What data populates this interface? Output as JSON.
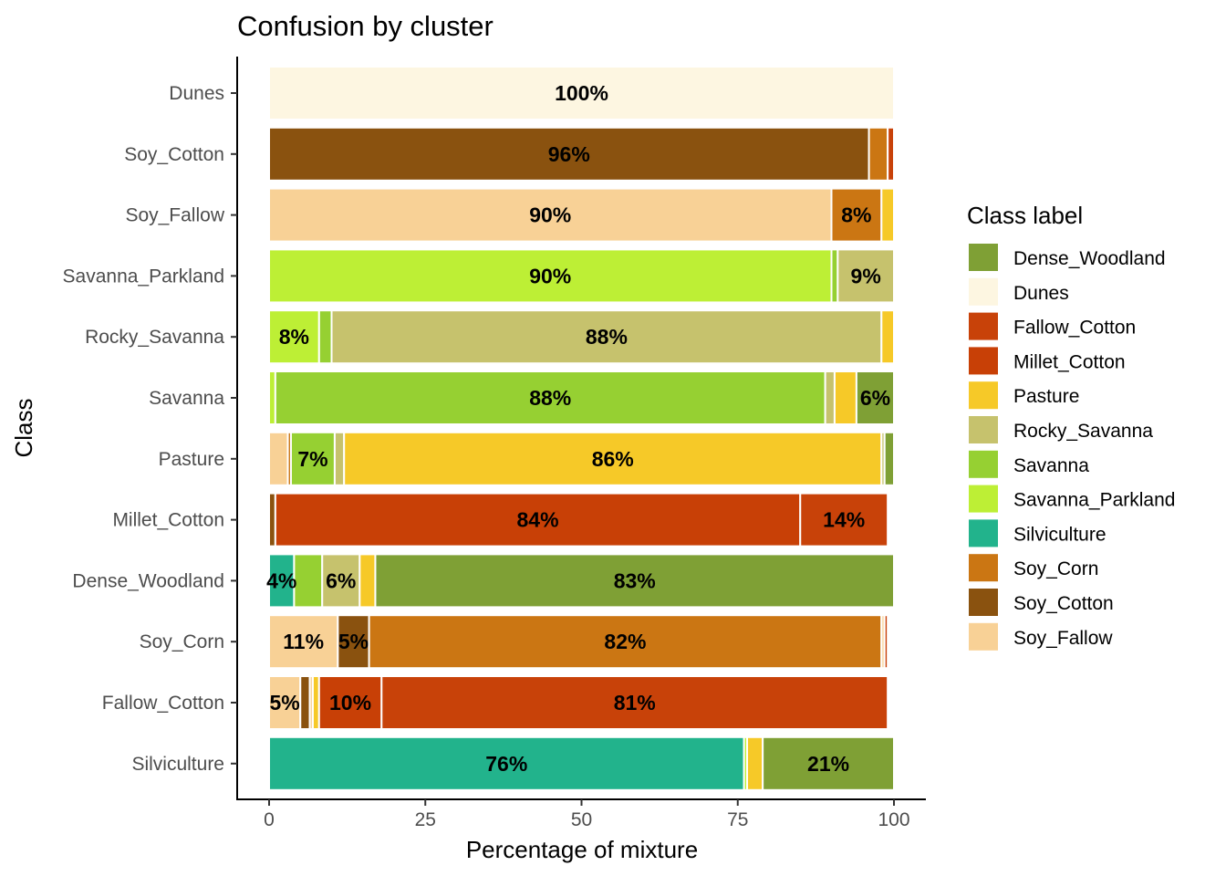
{
  "chart_data": {
    "type": "bar",
    "orientation": "horizontal",
    "stacked": true,
    "title": "Confusion by cluster",
    "xlabel": "Percentage of mixture",
    "ylabel": "Class",
    "xlim": [
      0,
      100
    ],
    "xticks": [
      "0",
      "25",
      "50",
      "75",
      "100"
    ],
    "grid": false,
    "legend": {
      "title": "Class label",
      "position": "right",
      "items": [
        {
          "name": "Dense_Woodland",
          "color": "#7fa035"
        },
        {
          "name": "Dunes",
          "color": "#fdf6e1"
        },
        {
          "name": "Fallow_Cotton",
          "color": "#c84209"
        },
        {
          "name": "Millet_Cotton",
          "color": "#c84006"
        },
        {
          "name": "Pasture",
          "color": "#f6c928"
        },
        {
          "name": "Rocky_Savanna",
          "color": "#c6c26d"
        },
        {
          "name": "Savanna",
          "color": "#96d032"
        },
        {
          "name": "Savanna_Parkland",
          "color": "#bdef35"
        },
        {
          "name": "Silviculture",
          "color": "#22b38c"
        },
        {
          "name": "Soy_Corn",
          "color": "#cb7613"
        },
        {
          "name": "Soy_Cotton",
          "color": "#8a520f"
        },
        {
          "name": "Soy_Fallow",
          "color": "#f8d196"
        }
      ]
    },
    "categories": [
      "Dunes",
      "Soy_Cotton",
      "Soy_Fallow",
      "Savanna_Parkland",
      "Rocky_Savanna",
      "Savanna",
      "Pasture",
      "Millet_Cotton",
      "Dense_Woodland",
      "Soy_Corn",
      "Fallow_Cotton",
      "Silviculture"
    ],
    "rows": [
      {
        "class": "Dunes",
        "segments": [
          {
            "label": "Dunes",
            "value": 100,
            "text": "100%"
          }
        ]
      },
      {
        "class": "Soy_Cotton",
        "segments": [
          {
            "label": "Soy_Cotton",
            "value": 96,
            "text": "96%"
          },
          {
            "label": "Soy_Corn",
            "value": 3
          },
          {
            "label": "Fallow_Cotton",
            "value": 1
          }
        ]
      },
      {
        "class": "Soy_Fallow",
        "segments": [
          {
            "label": "Soy_Fallow",
            "value": 90,
            "text": "90%"
          },
          {
            "label": "Soy_Corn",
            "value": 8,
            "text": "8%"
          },
          {
            "label": "Pasture",
            "value": 2
          }
        ]
      },
      {
        "class": "Savanna_Parkland",
        "segments": [
          {
            "label": "Savanna_Parkland",
            "value": 90,
            "text": "90%"
          },
          {
            "label": "Savanna",
            "value": 1
          },
          {
            "label": "Rocky_Savanna",
            "value": 9,
            "text": "9%"
          }
        ]
      },
      {
        "class": "Rocky_Savanna",
        "segments": [
          {
            "label": "Savanna_Parkland",
            "value": 8,
            "text": "8%"
          },
          {
            "label": "Savanna",
            "value": 2
          },
          {
            "label": "Rocky_Savanna",
            "value": 88,
            "text": "88%"
          },
          {
            "label": "Pasture",
            "value": 2
          }
        ]
      },
      {
        "class": "Savanna",
        "segments": [
          {
            "label": "Savanna_Parkland",
            "value": 1
          },
          {
            "label": "Savanna",
            "value": 88,
            "text": "88%"
          },
          {
            "label": "Rocky_Savanna",
            "value": 1.5
          },
          {
            "label": "Pasture",
            "value": 3.5
          },
          {
            "label": "Dense_Woodland",
            "value": 6,
            "text": "6%"
          }
        ]
      },
      {
        "class": "Pasture",
        "segments": [
          {
            "label": "Soy_Fallow",
            "value": 3
          },
          {
            "label": "Soy_Corn",
            "value": 0.5
          },
          {
            "label": "Savanna",
            "value": 7,
            "text": "7%"
          },
          {
            "label": "Rocky_Savanna",
            "value": 1.5
          },
          {
            "label": "Pasture",
            "value": 86,
            "text": "86%"
          },
          {
            "label": "Rocky_Savanna",
            "value": 0.5
          },
          {
            "label": "Dense_Woodland",
            "value": 1.5
          }
        ]
      },
      {
        "class": "Millet_Cotton",
        "segments": [
          {
            "label": "Soy_Cotton",
            "value": 1
          },
          {
            "label": "Millet_Cotton",
            "value": 84,
            "text": "84%"
          },
          {
            "label": "Fallow_Cotton",
            "value": 14,
            "text": "14%"
          }
        ]
      },
      {
        "class": "Dense_Woodland",
        "segments": [
          {
            "label": "Silviculture",
            "value": 4,
            "text": "4%"
          },
          {
            "label": "Savanna",
            "value": 4.5
          },
          {
            "label": "Rocky_Savanna",
            "value": 6,
            "text": "6%"
          },
          {
            "label": "Pasture",
            "value": 2.5
          },
          {
            "label": "Dense_Woodland",
            "value": 83,
            "text": "83%"
          }
        ]
      },
      {
        "class": "Soy_Corn",
        "segments": [
          {
            "label": "Soy_Fallow",
            "value": 11,
            "text": "11%"
          },
          {
            "label": "Soy_Cotton",
            "value": 5,
            "text": "5%"
          },
          {
            "label": "Soy_Corn",
            "value": 82,
            "text": "82%"
          },
          {
            "label": "Soy_Fallow",
            "value": 0.5
          },
          {
            "label": "Fallow_Cotton",
            "value": 0.5
          }
        ]
      },
      {
        "class": "Fallow_Cotton",
        "segments": [
          {
            "label": "Soy_Fallow",
            "value": 5,
            "text": "5%"
          },
          {
            "label": "Soy_Cotton",
            "value": 1.5
          },
          {
            "label": "Soy_Fallow",
            "value": 0.5
          },
          {
            "label": "Pasture",
            "value": 1
          },
          {
            "label": "Millet_Cotton",
            "value": 10,
            "text": "10%"
          },
          {
            "label": "Fallow_Cotton",
            "value": 81,
            "text": "81%"
          }
        ]
      },
      {
        "class": "Silviculture",
        "segments": [
          {
            "label": "Silviculture",
            "value": 76,
            "text": "76%"
          },
          {
            "label": "Savanna_Parkland",
            "value": 0.5
          },
          {
            "label": "Pasture",
            "value": 2.5
          },
          {
            "label": "Dense_Woodland",
            "value": 21,
            "text": "21%"
          }
        ]
      }
    ]
  }
}
